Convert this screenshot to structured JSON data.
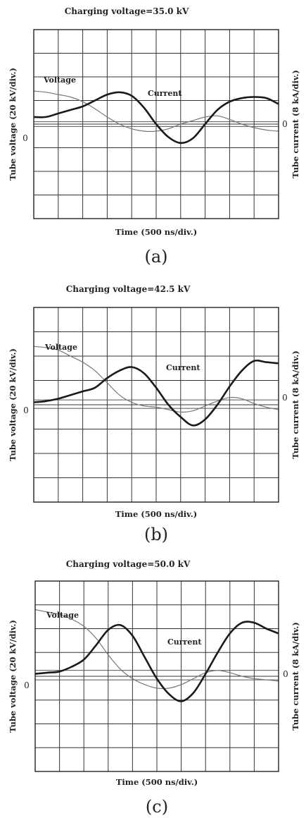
{
  "chart_data": [
    {
      "type": "line",
      "title": "Charging voltage=35.0 kV",
      "panel_label": "(a)",
      "xlabel": "Time (500 ns/div.)",
      "ylabel_left": "Tube voltage (20 kV/div.)",
      "ylabel_right": "Tube current (8 kA/div.)",
      "zero_label_left": "0",
      "zero_label_right": "0",
      "grid": true,
      "x_divisions": 10,
      "y_divisions": 8,
      "x_units": "div",
      "y_units": "div (from top)",
      "voltage_zero_div": 4.1,
      "current_zero_div": 3.9,
      "series": [
        {
          "name": "Voltage",
          "x": [
            0,
            0.5,
            1,
            1.5,
            2,
            2.5,
            3,
            3.5,
            4,
            4.5,
            5,
            5.5,
            6,
            6.5,
            7,
            7.5,
            8,
            8.5,
            9,
            9.5,
            10
          ],
          "y": [
            2.6,
            2.65,
            2.75,
            2.85,
            3.05,
            3.35,
            3.7,
            4.0,
            4.2,
            4.3,
            4.3,
            4.2,
            4.0,
            3.85,
            3.7,
            3.65,
            3.8,
            4.0,
            4.15,
            4.25,
            4.3
          ]
        },
        {
          "name": "Current",
          "x": [
            0,
            0.5,
            1,
            1.5,
            2,
            2.5,
            3,
            3.5,
            4,
            4.5,
            5,
            5.5,
            6,
            6.5,
            7,
            7.5,
            8,
            8.5,
            9,
            9.5,
            10
          ],
          "y": [
            3.7,
            3.7,
            3.55,
            3.4,
            3.25,
            3.0,
            2.75,
            2.65,
            2.8,
            3.3,
            4.0,
            4.55,
            4.8,
            4.6,
            4.0,
            3.4,
            3.05,
            2.9,
            2.85,
            2.9,
            3.15
          ]
        }
      ],
      "annotations": [
        "Voltage",
        "Current"
      ]
    },
    {
      "type": "line",
      "title": "Charging voltage=42.5 kV",
      "panel_label": "(b)",
      "xlabel": "Time (500 ns/div.)",
      "ylabel_left": "Tube voltage (20 kV/div.)",
      "ylabel_right": "Tube current (8 kA/div.)",
      "zero_label_left": "0",
      "zero_label_right": "0",
      "grid": true,
      "x_divisions": 10,
      "y_divisions": 8,
      "x_units": "div",
      "y_units": "div (from top)",
      "voltage_zero_div": 4.15,
      "current_zero_div": 3.8,
      "series": [
        {
          "name": "Voltage",
          "x": [
            0,
            0.5,
            1,
            1.5,
            2,
            2.5,
            3,
            3.5,
            4,
            4.5,
            5,
            5.5,
            6,
            6.5,
            7,
            7.5,
            8,
            8.5,
            9,
            9.5,
            10
          ],
          "y": [
            1.6,
            1.65,
            1.75,
            2.0,
            2.25,
            2.6,
            3.1,
            3.6,
            3.9,
            4.05,
            4.1,
            4.2,
            4.3,
            4.25,
            4.05,
            3.85,
            3.7,
            3.75,
            3.95,
            4.1,
            4.2
          ]
        },
        {
          "name": "Current",
          "x": [
            0,
            0.5,
            1,
            1.5,
            2,
            2.5,
            3,
            3.5,
            4,
            4.5,
            5,
            5.5,
            6,
            6.5,
            7,
            7.5,
            8,
            8.5,
            9,
            9.5,
            10
          ],
          "y": [
            3.9,
            3.85,
            3.75,
            3.6,
            3.45,
            3.3,
            2.9,
            2.6,
            2.45,
            2.7,
            3.3,
            4.0,
            4.5,
            4.85,
            4.6,
            4.0,
            3.25,
            2.6,
            2.2,
            2.25,
            2.3
          ]
        }
      ],
      "annotations": [
        "Voltage",
        "Current"
      ]
    },
    {
      "type": "line",
      "title": "Charging voltage=50.0 kV",
      "panel_label": "(c)",
      "xlabel": "Time (500 ns/div.)",
      "ylabel_left": "Tube voltage (20 kV/div.)",
      "ylabel_right": "Tube current (8 kA/div.)",
      "zero_label_left": "0",
      "zero_label_right": "0",
      "grid": true,
      "x_divisions": 10,
      "y_divisions": 8,
      "x_units": "div",
      "y_units": "div (from top)",
      "voltage_zero_div": 4.15,
      "current_zero_div": 3.75,
      "series": [
        {
          "name": "Voltage",
          "x": [
            0,
            0.5,
            1,
            1.5,
            2,
            2.5,
            3,
            3.5,
            4,
            4.5,
            5,
            5.5,
            6,
            6.5,
            7,
            7.5,
            8,
            8.5,
            9,
            9.5,
            10
          ],
          "y": [
            1.2,
            1.3,
            1.4,
            1.6,
            1.9,
            2.4,
            3.1,
            3.7,
            4.1,
            4.35,
            4.5,
            4.5,
            4.35,
            4.1,
            3.85,
            3.75,
            3.85,
            4.0,
            4.1,
            4.15,
            4.2
          ]
        },
        {
          "name": "Current",
          "x": [
            0,
            0.5,
            1,
            1.5,
            2,
            2.5,
            3,
            3.5,
            4,
            4.5,
            5,
            5.5,
            6,
            6.5,
            7,
            7.5,
            8,
            8.5,
            9,
            9.5,
            10
          ],
          "y": [
            3.9,
            3.85,
            3.8,
            3.6,
            3.3,
            2.7,
            2.05,
            1.85,
            2.3,
            3.2,
            4.1,
            4.75,
            5.05,
            4.7,
            3.9,
            3.0,
            2.2,
            1.75,
            1.75,
            2.0,
            2.2
          ]
        }
      ],
      "annotations": [
        "Voltage",
        "Current"
      ]
    }
  ]
}
